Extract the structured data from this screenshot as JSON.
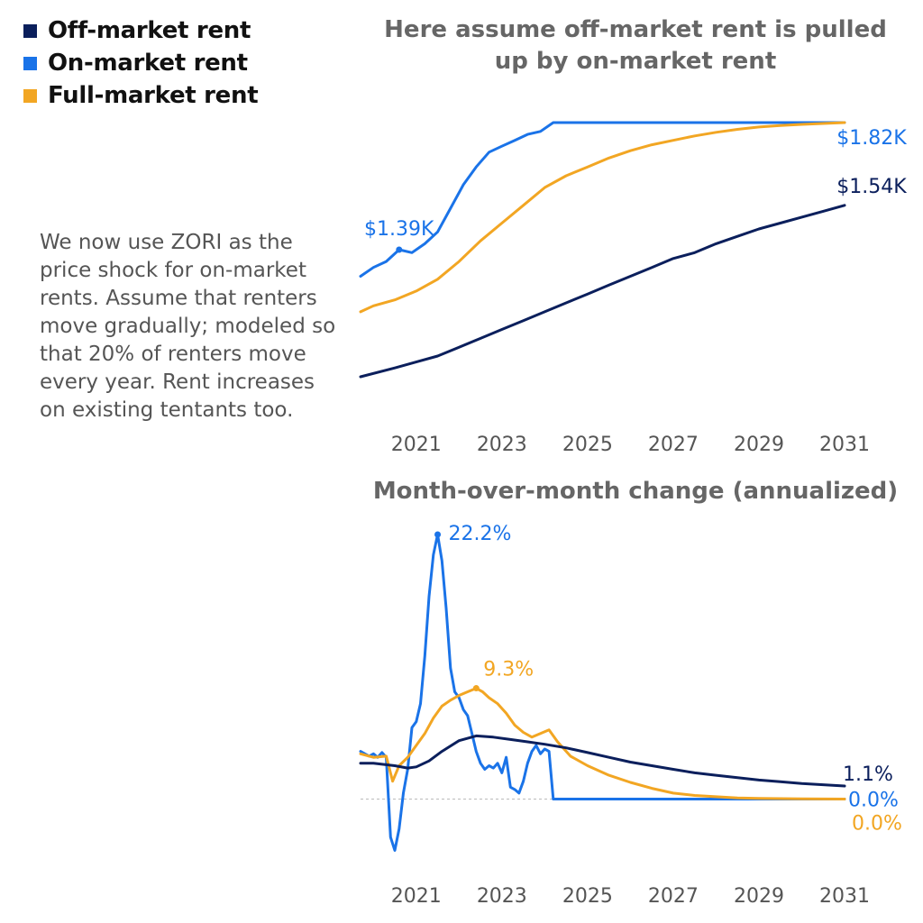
{
  "legend": [
    {
      "label": "Off-market rent",
      "color": "#0b1f5c"
    },
    {
      "label": "On-market rent",
      "color": "#1a73e8"
    },
    {
      "label": "Full-market rent",
      "color": "#f2a623"
    }
  ],
  "note": "We now use ZORI as the price shock for on-market rents. Assume that renters move gradually; modeled so that 20% of renters move every year. Rent increases on existing tentants too.",
  "chart_data": [
    {
      "type": "line",
      "title": "Here assume off-market rent is pulled up by on-market rent",
      "xlabel": "",
      "ylabel": "",
      "xlim": [
        2019.7,
        2031.0
      ],
      "ylim": [
        0.96,
        1.82
      ],
      "x_ticks": [
        "2021",
        "2023",
        "2025",
        "2027",
        "2029",
        "2031"
      ],
      "grid": false,
      "legend": "top-left",
      "series": [
        {
          "name": "On-market rent",
          "color": "#1a73e8",
          "x": [
            2019.7,
            2020.0,
            2020.3,
            2020.6,
            2020.9,
            2021.2,
            2021.5,
            2021.8,
            2022.1,
            2022.4,
            2022.7,
            2023.0,
            2023.3,
            2023.6,
            2023.9,
            2024.2,
            2025,
            2026,
            2027,
            2028,
            2029,
            2030,
            2031.0
          ],
          "y": [
            1.3,
            1.33,
            1.35,
            1.39,
            1.38,
            1.41,
            1.45,
            1.53,
            1.61,
            1.67,
            1.72,
            1.74,
            1.76,
            1.78,
            1.79,
            1.82,
            1.82,
            1.82,
            1.82,
            1.82,
            1.82,
            1.82,
            1.82
          ]
        },
        {
          "name": "Full-market rent",
          "color": "#f2a623",
          "x": [
            2019.7,
            2020.0,
            2020.5,
            2021.0,
            2021.5,
            2022.0,
            2022.5,
            2023.0,
            2023.5,
            2024.0,
            2024.5,
            2025.0,
            2025.5,
            2026.0,
            2026.5,
            2027.0,
            2027.5,
            2028.0,
            2028.5,
            2029.0,
            2029.5,
            2030.0,
            2030.5,
            2031.0
          ],
          "y": [
            1.18,
            1.2,
            1.22,
            1.25,
            1.29,
            1.35,
            1.42,
            1.48,
            1.54,
            1.6,
            1.64,
            1.67,
            1.7,
            1.725,
            1.745,
            1.76,
            1.775,
            1.787,
            1.797,
            1.805,
            1.81,
            1.814,
            1.817,
            1.82
          ]
        },
        {
          "name": "Off-market rent",
          "color": "#0b1f5c",
          "x": [
            2019.7,
            2020.5,
            2021.0,
            2021.5,
            2022.0,
            2022.5,
            2023.0,
            2023.5,
            2024.0,
            2024.5,
            2025.0,
            2025.5,
            2026.0,
            2026.5,
            2027.0,
            2027.5,
            2028.0,
            2028.5,
            2029.0,
            2029.5,
            2030.0,
            2030.5,
            2031.0
          ],
          "y": [
            0.96,
            0.99,
            1.01,
            1.03,
            1.06,
            1.09,
            1.12,
            1.15,
            1.18,
            1.21,
            1.24,
            1.27,
            1.3,
            1.33,
            1.36,
            1.38,
            1.41,
            1.435,
            1.46,
            1.48,
            1.5,
            1.52,
            1.54
          ]
        }
      ],
      "annotations": [
        {
          "text": "$1.39K",
          "x": 2020.6,
          "y": 1.39,
          "color": "#1a73e8"
        },
        {
          "text": "$1.82K",
          "x": 2031.0,
          "y": 1.82,
          "color": "#1a73e8"
        },
        {
          "text": "$1.54K",
          "x": 2031.0,
          "y": 1.54,
          "color": "#0b1f5c"
        }
      ]
    },
    {
      "type": "line",
      "title": "Month-over-month change (annualized)",
      "xlabel": "",
      "ylabel": "",
      "xlim": [
        2019.7,
        2031.0
      ],
      "ylim": [
        -4.5,
        22.2
      ],
      "x_ticks": [
        "2021",
        "2023",
        "2025",
        "2027",
        "2029",
        "2031"
      ],
      "zero_line": true,
      "grid": false,
      "series": [
        {
          "name": "On-market rent",
          "color": "#1a73e8",
          "x": [
            2019.7,
            2019.9,
            2020.0,
            2020.1,
            2020.2,
            2020.3,
            2020.4,
            2020.5,
            2020.6,
            2020.7,
            2020.8,
            2020.9,
            2021.0,
            2021.1,
            2021.2,
            2021.3,
            2021.4,
            2021.5,
            2021.6,
            2021.7,
            2021.8,
            2021.9,
            2022.0,
            2022.1,
            2022.2,
            2022.3,
            2022.4,
            2022.5,
            2022.6,
            2022.7,
            2022.8,
            2022.9,
            2023.0,
            2023.1,
            2023.2,
            2023.3,
            2023.4,
            2023.5,
            2023.6,
            2023.7,
            2023.8,
            2023.9,
            2024.0,
            2024.1,
            2024.2,
            2024.3,
            2025,
            2026,
            2027,
            2028,
            2029,
            2030,
            2031.0
          ],
          "y": [
            4.0,
            3.6,
            3.8,
            3.5,
            3.9,
            3.5,
            -3.2,
            -4.3,
            -2.5,
            0.5,
            2.5,
            6.0,
            6.5,
            8.0,
            12.0,
            17.0,
            20.5,
            22.2,
            20.0,
            16.0,
            11.0,
            9.0,
            8.5,
            7.5,
            7.0,
            5.5,
            4.0,
            3.0,
            2.5,
            2.8,
            2.6,
            3.0,
            2.2,
            3.5,
            1.0,
            0.8,
            0.5,
            1.5,
            3.0,
            4.0,
            4.5,
            3.8,
            4.2,
            4.0,
            0.0,
            0.0,
            0.0,
            0.0,
            0.0,
            0.0,
            0.0,
            0.0,
            0.0
          ]
        },
        {
          "name": "Full-market rent",
          "color": "#f2a623",
          "x": [
            2019.7,
            2020.0,
            2020.3,
            2020.45,
            2020.6,
            2020.8,
            2021.0,
            2021.2,
            2021.4,
            2021.6,
            2021.8,
            2022.0,
            2022.2,
            2022.4,
            2022.55,
            2022.7,
            2022.9,
            2023.1,
            2023.3,
            2023.5,
            2023.7,
            2023.9,
            2024.1,
            2024.3,
            2024.6,
            2025.0,
            2025.5,
            2026.0,
            2026.5,
            2027.0,
            2027.5,
            2028.0,
            2028.5,
            2029.0,
            2030.0,
            2031.0
          ],
          "y": [
            3.8,
            3.5,
            3.6,
            1.5,
            2.8,
            3.5,
            4.5,
            5.5,
            6.8,
            7.8,
            8.3,
            8.7,
            9.0,
            9.3,
            9.0,
            8.5,
            8.0,
            7.2,
            6.2,
            5.6,
            5.2,
            5.5,
            5.8,
            4.8,
            3.6,
            2.8,
            2.0,
            1.4,
            0.9,
            0.5,
            0.3,
            0.2,
            0.1,
            0.05,
            0.02,
            0.0
          ]
        },
        {
          "name": "Off-market rent",
          "color": "#0b1f5c",
          "x": [
            2019.7,
            2020.0,
            2020.5,
            2020.8,
            2021.0,
            2021.3,
            2021.6,
            2022.0,
            2022.4,
            2022.8,
            2023.2,
            2023.6,
            2024.0,
            2024.5,
            2025.0,
            2025.5,
            2026.0,
            2026.5,
            2027.0,
            2027.5,
            2028.0,
            2028.5,
            2029.0,
            2029.5,
            2030.0,
            2030.5,
            2031.0
          ],
          "y": [
            3.0,
            3.0,
            2.8,
            2.6,
            2.7,
            3.2,
            4.0,
            4.9,
            5.3,
            5.2,
            5.0,
            4.8,
            4.6,
            4.3,
            3.9,
            3.5,
            3.1,
            2.8,
            2.5,
            2.2,
            2.0,
            1.8,
            1.6,
            1.45,
            1.3,
            1.2,
            1.1
          ]
        }
      ],
      "annotations": [
        {
          "text": "22.2%",
          "x": 2021.5,
          "y": 22.2,
          "color": "#1a73e8"
        },
        {
          "text": "9.3%",
          "x": 2022.4,
          "y": 9.3,
          "color": "#f2a623"
        },
        {
          "text": "1.1%",
          "x": 2031.0,
          "y": 1.1,
          "color": "#0b1f5c"
        },
        {
          "text": "0.0%",
          "x": 2031.0,
          "y": 0.0,
          "color": "#1a73e8"
        },
        {
          "text": "0.0%",
          "x": 2031.0,
          "y": 0.0,
          "color": "#f2a623"
        }
      ]
    }
  ]
}
